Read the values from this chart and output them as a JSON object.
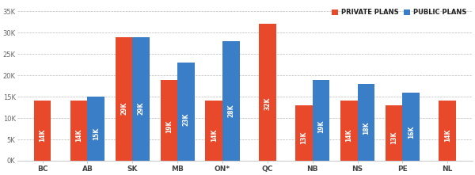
{
  "provinces": [
    "BC",
    "AB",
    "SK",
    "MB",
    "ON*",
    "QC",
    "NB",
    "NS",
    "PE",
    "NL"
  ],
  "private": [
    14000,
    14000,
    29000,
    19000,
    14000,
    32000,
    13000,
    14000,
    13000,
    14000
  ],
  "public": [
    null,
    15000,
    29000,
    23000,
    28000,
    null,
    19000,
    18000,
    16000,
    null
  ],
  "private_labels": [
    "14K",
    "14K",
    "29K",
    "19K",
    "14K",
    "32K",
    "13K",
    "14K",
    "13K",
    "14K"
  ],
  "public_labels": [
    null,
    "15K",
    "29K",
    "23K",
    "28K",
    null,
    "19K",
    "18K",
    "16K",
    null
  ],
  "private_color": "#E8492A",
  "public_color": "#3B7EC8",
  "label_color": "#FFFFFF",
  "ylim": [
    0,
    37000
  ],
  "yticks": [
    0,
    5000,
    10000,
    15000,
    20000,
    25000,
    30000,
    35000
  ],
  "ytick_labels": [
    "0K",
    "5K",
    "10K",
    "15K",
    "20K",
    "25K",
    "30K",
    "35K"
  ],
  "legend_private": "PRIVATE PLANS",
  "legend_public": "PUBLIC PLANS",
  "bar_width": 0.38,
  "figsize": [
    6.0,
    2.21
  ],
  "dpi": 100,
  "bg_color": "#FFFFFF",
  "grid_color": "#BBBBBB",
  "spine_color": "#CCCCCC",
  "xtick_color": "#444444",
  "ytick_color": "#666666"
}
